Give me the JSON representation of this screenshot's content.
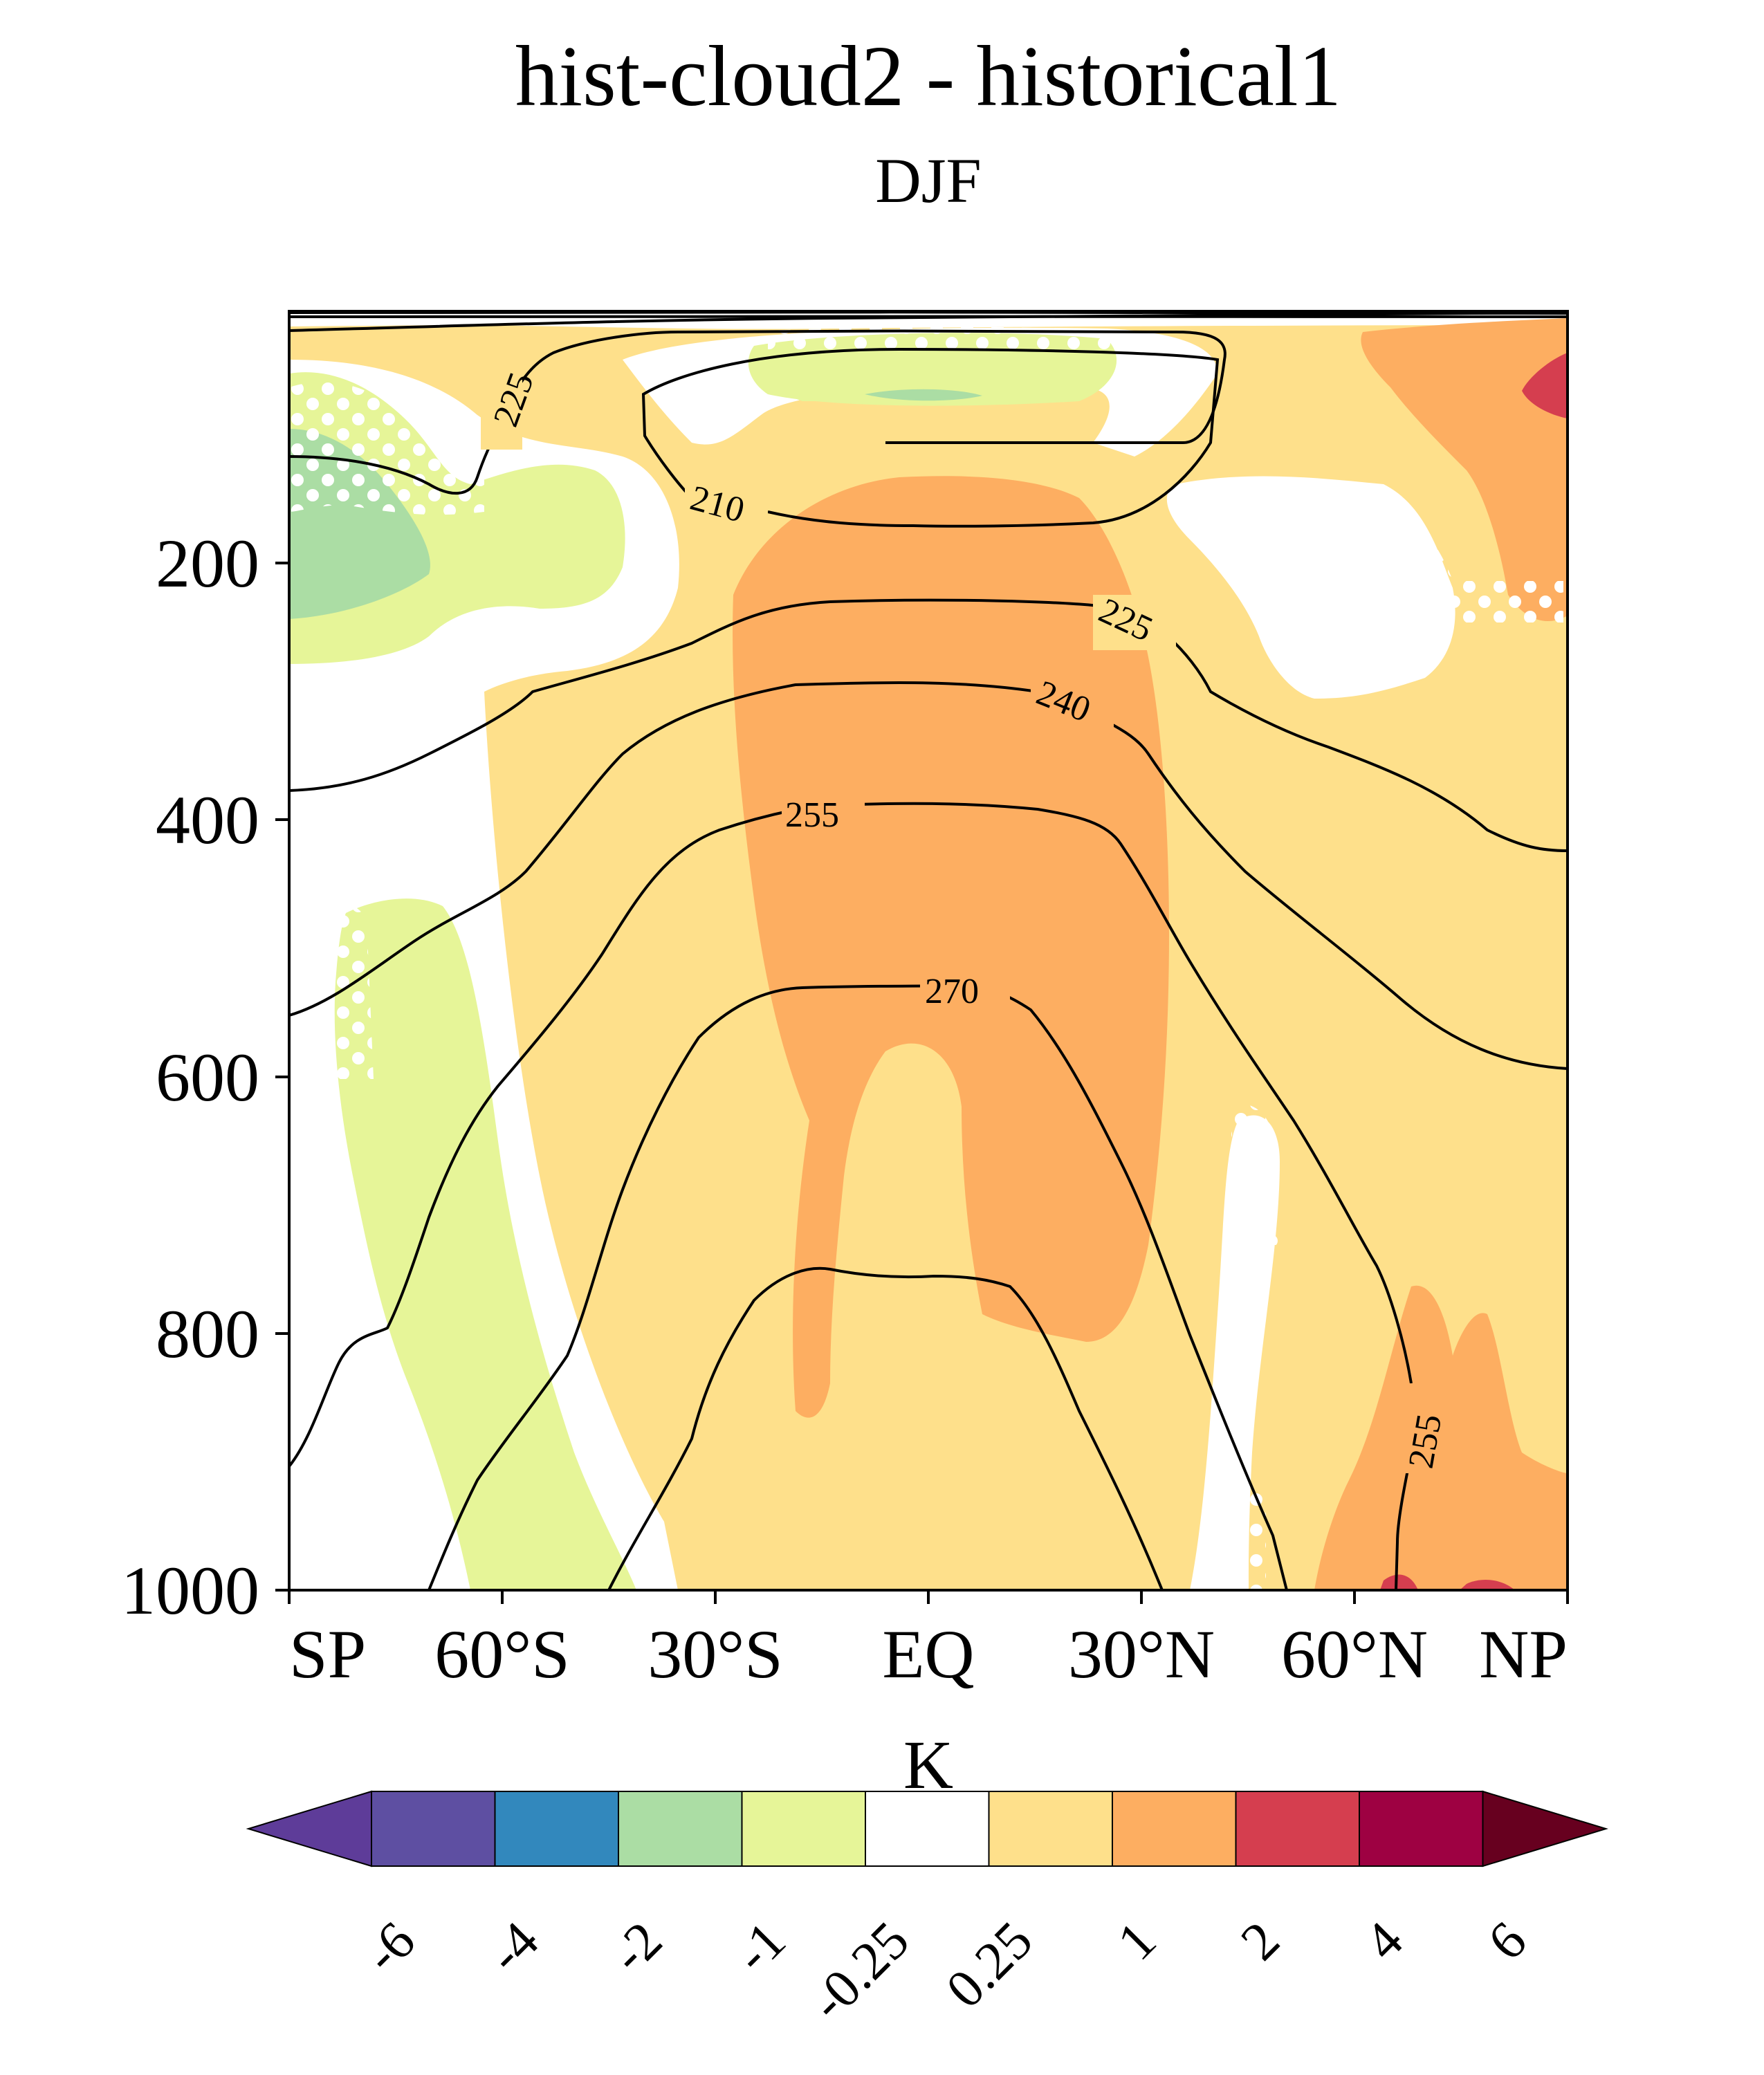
{
  "title": "hist-cloud2 - historical1",
  "subtitle": "DJF",
  "chart_data": {
    "type": "contour",
    "x_ticks": [
      "SP",
      "60°S",
      "30°S",
      "EQ",
      "30°N",
      "60°N",
      "NP"
    ],
    "x_values": [
      -90,
      -60,
      -30,
      0,
      30,
      60,
      90
    ],
    "y_ticks": [
      "200",
      "400",
      "600",
      "800",
      "1000"
    ],
    "y_values": [
      200,
      400,
      600,
      800,
      1000
    ],
    "y_range": [
      5,
      1000
    ],
    "y_inverted": true,
    "colorbar": {
      "label": "K",
      "ticks": [
        "-6",
        "-4",
        "-2",
        "-1",
        "-0.25",
        "0.25",
        "1",
        "2",
        "4",
        "6"
      ],
      "colors": [
        "#5e3c99",
        "#5e4fa2",
        "#3288bd",
        "#abdda4",
        "#e6f598",
        "#ffffff",
        "#fee08b",
        "#fdae61",
        "#d53e4f",
        "#9e0142",
        "#67001f"
      ],
      "extend": "both"
    },
    "contour_labels": [
      "225",
      "210",
      "225",
      "240",
      "255",
      "270",
      "255"
    ],
    "contour_levels": [
      210,
      225,
      240,
      255,
      270
    ],
    "stippling": "white dots mark regions",
    "background_fill": "#fee08b"
  }
}
